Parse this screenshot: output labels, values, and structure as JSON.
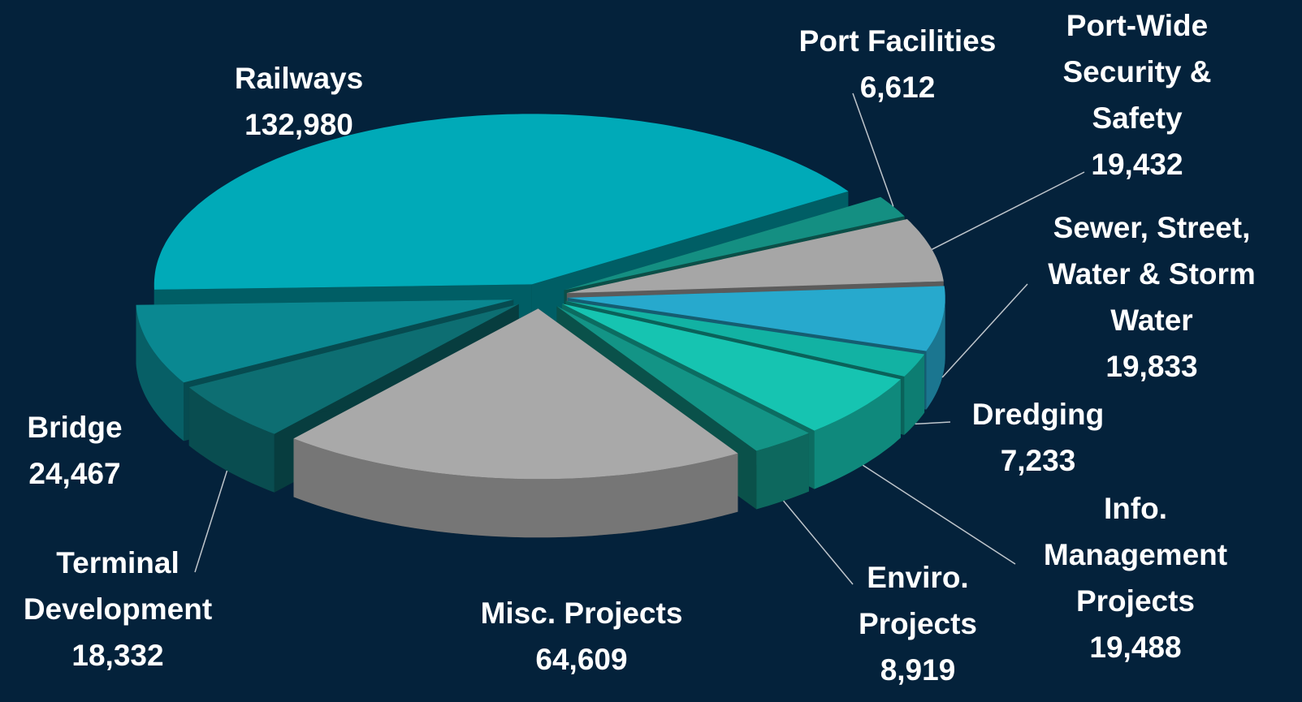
{
  "chart_data": {
    "type": "pie",
    "categories": [
      "Railways",
      "Port Facilities",
      "Port-Wide Security & Safety",
      "Sewer, Street, Water & Storm Water",
      "Dredging",
      "Info. Management Projects",
      "Enviro. Projects",
      "Misc. Projects",
      "Terminal Development",
      "Bridge"
    ],
    "values": [
      132980,
      6612,
      19432,
      19833,
      7233,
      19488,
      8919,
      64609,
      18332,
      24467
    ],
    "value_labels": [
      "132,980",
      "6,612",
      "19,432",
      "19,833",
      "7,233",
      "19,488",
      "8,919",
      "64,609",
      "18,332",
      "24,467"
    ],
    "colors": [
      "#00aab8",
      "#148f82",
      "#a6a6a6",
      "#27a9cd",
      "#12b2a3",
      "#16c4b1",
      "#139486",
      "#a9a9a9",
      "#0d6e72",
      "#0a8891"
    ]
  }
}
